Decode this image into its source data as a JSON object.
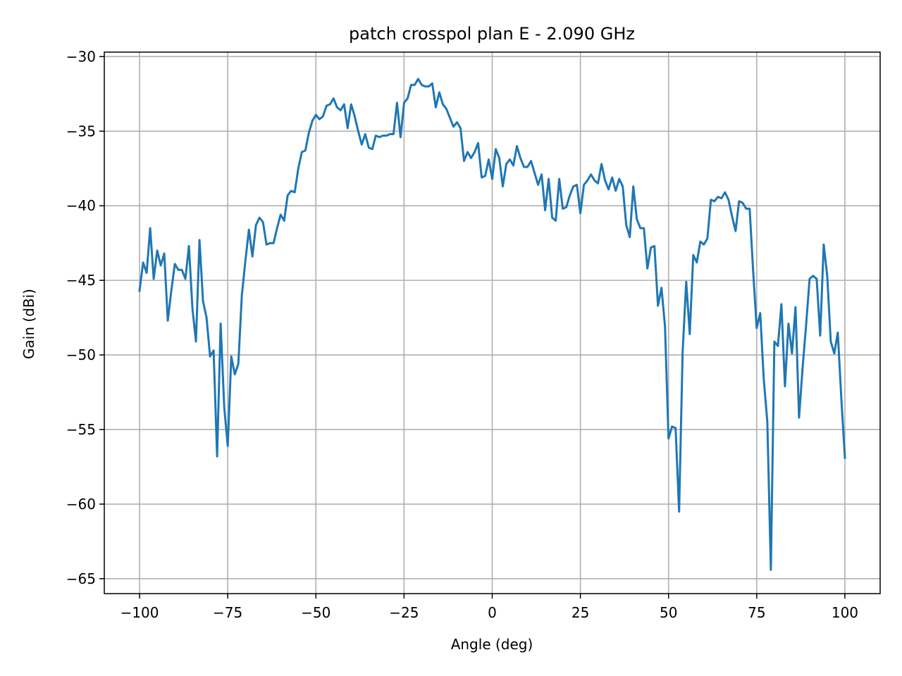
{
  "chart_data": {
    "type": "line",
    "title": "patch crosspol plan E - 2.090 GHz",
    "xlabel": "Angle (deg)",
    "ylabel": "Gain (dBi)",
    "xlim": [
      -110,
      110
    ],
    "ylim": [
      -66,
      -29.7
    ],
    "xticks": [
      -100,
      -75,
      -50,
      -25,
      0,
      25,
      50,
      75,
      100
    ],
    "xtick_labels": [
      "−100",
      "−75",
      "−50",
      "−25",
      "0",
      "25",
      "50",
      "75",
      "100"
    ],
    "yticks": [
      -30,
      -35,
      -40,
      -45,
      -50,
      -55,
      -60,
      -65
    ],
    "ytick_labels": [
      "−30",
      "−35",
      "−40",
      "−45",
      "−50",
      "−55",
      "−60",
      "−65"
    ],
    "grid": true,
    "line_color": "#1f77b4",
    "series": [
      {
        "x": [
          -100,
          -99,
          -98,
          -97,
          -96,
          -95,
          -94,
          -93,
          -92,
          -91,
          -90,
          -89,
          -88,
          -87,
          -86,
          -85,
          -84,
          -83,
          -82,
          -81,
          -80,
          -79,
          -78,
          -77,
          -76,
          -75,
          -74,
          -73,
          -72,
          -71,
          -70,
          -69,
          -68,
          -67,
          -66,
          -65,
          -64,
          -63,
          -62,
          -61,
          -60,
          -59,
          -58,
          -57,
          -56,
          -55,
          -54,
          -53,
          -52,
          -51,
          -50,
          -49,
          -48,
          -47,
          -46,
          -45,
          -44,
          -43,
          -42,
          -41,
          -40,
          -39,
          -38,
          -37,
          -36,
          -35,
          -34,
          -33,
          -32,
          -31,
          -30,
          -29,
          -28,
          -27,
          -26,
          -25,
          -24,
          -23,
          -22,
          -21,
          -20,
          -19,
          -18,
          -17,
          -16,
          -15,
          -14,
          -13,
          -12,
          -11,
          -10,
          -9,
          -8,
          -7,
          -6,
          -5,
          -4,
          -3,
          -2,
          -1,
          0,
          1,
          2,
          3,
          4,
          5,
          6,
          7,
          8,
          9,
          10,
          11,
          12,
          13,
          14,
          15,
          16,
          17,
          18,
          19,
          20,
          21,
          22,
          23,
          24,
          25,
          26,
          27,
          28,
          29,
          30,
          31,
          32,
          33,
          34,
          35,
          36,
          37,
          38,
          39,
          40,
          41,
          42,
          43,
          44,
          45,
          46,
          47,
          48,
          49,
          50,
          51,
          52,
          53,
          54,
          55,
          56,
          57,
          58,
          59,
          60,
          61,
          62,
          63,
          64,
          65,
          66,
          67,
          68,
          69,
          70,
          71,
          72,
          73,
          74,
          75,
          76,
          77,
          78,
          79,
          80,
          81,
          82,
          83,
          84,
          85,
          86,
          87,
          88,
          89,
          90,
          91,
          92,
          93,
          94,
          95,
          96,
          97,
          98,
          99,
          100
        ],
        "y": [
          -45.7,
          -43.8,
          -44.5,
          -41.5,
          -44.9,
          -43.0,
          -44.0,
          -43.2,
          -47.7,
          -45.7,
          -43.9,
          -44.3,
          -44.3,
          -44.9,
          -42.7,
          -46.9,
          -49.1,
          -42.3,
          -46.4,
          -47.5,
          -50.1,
          -49.7,
          -56.8,
          -47.9,
          -53.5,
          -56.1,
          -50.1,
          -51.3,
          -50.6,
          -46.0,
          -43.7,
          -41.6,
          -43.4,
          -41.3,
          -40.8,
          -41.1,
          -42.6,
          -42.5,
          -42.5,
          -41.5,
          -40.6,
          -41.0,
          -39.3,
          -39.0,
          -39.1,
          -37.5,
          -36.4,
          -36.3,
          -35.1,
          -34.3,
          -33.9,
          -34.2,
          -34.0,
          -33.3,
          -33.2,
          -32.8,
          -33.4,
          -33.6,
          -33.2,
          -34.8,
          -33.2,
          -34.0,
          -35.0,
          -35.9,
          -35.2,
          -36.1,
          -36.2,
          -35.3,
          -35.4,
          -35.3,
          -35.3,
          -35.2,
          -35.2,
          -33.1,
          -35.4,
          -33.1,
          -32.8,
          -31.9,
          -31.9,
          -31.5,
          -31.9,
          -32.0,
          -32.0,
          -31.8,
          -33.4,
          -32.4,
          -33.2,
          -33.5,
          -34.1,
          -34.7,
          -34.4,
          -34.8,
          -37.0,
          -36.4,
          -36.8,
          -36.4,
          -35.8,
          -38.1,
          -38.0,
          -36.9,
          -38.2,
          -36.2,
          -36.8,
          -38.7,
          -37.2,
          -36.9,
          -37.3,
          -36.0,
          -36.8,
          -37.4,
          -37.4,
          -37.0,
          -37.8,
          -38.6,
          -37.9,
          -40.3,
          -38.2,
          -40.8,
          -41.0,
          -38.2,
          -40.2,
          -40.1,
          -39.3,
          -38.7,
          -38.6,
          -40.5,
          -38.6,
          -38.3,
          -37.9,
          -38.3,
          -38.5,
          -37.2,
          -38.3,
          -38.9,
          -38.1,
          -39.0,
          -38.2,
          -38.7,
          -41.3,
          -42.1,
          -38.7,
          -40.9,
          -41.5,
          -41.5,
          -44.2,
          -42.8,
          -42.7,
          -46.7,
          -45.5,
          -48.1,
          -55.6,
          -54.8,
          -54.9,
          -60.5,
          -49.8,
          -45.1,
          -48.6,
          -43.3,
          -43.8,
          -42.4,
          -42.6,
          -42.2,
          -39.6,
          -39.7,
          -39.4,
          -39.5,
          -39.1,
          -39.6,
          -40.7,
          -41.7,
          -39.7,
          -39.8,
          -40.2,
          -40.2,
          -44.4,
          -48.2,
          -47.2,
          -51.6,
          -54.5,
          -64.4,
          -49.1,
          -49.4,
          -46.6,
          -52.1,
          -47.9,
          -49.9,
          -46.8,
          -54.2,
          -50.9,
          -48.0,
          -44.9,
          -44.7,
          -44.9,
          -48.7,
          -42.6,
          -44.7,
          -49.1,
          -49.9,
          -48.5,
          -53.0,
          -56.9
        ]
      }
    ]
  }
}
